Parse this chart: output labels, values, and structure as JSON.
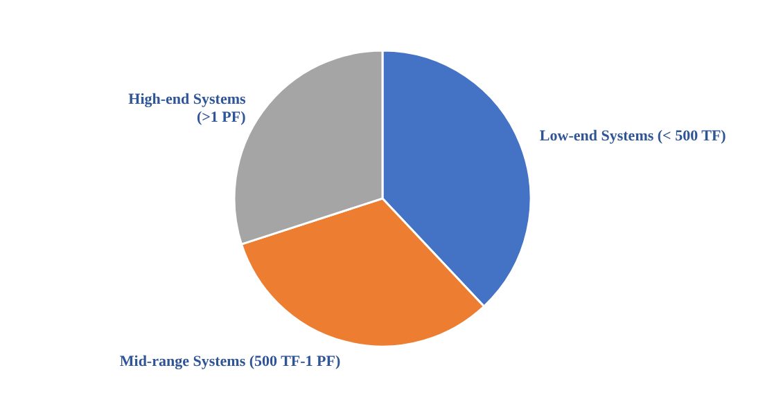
{
  "chart_data": {
    "type": "pie",
    "categories": [
      "Low-end Systems (< 500 TF)",
      "Mid-range Systems (500 TF-1  PF)",
      "High-end Systems\n(>1 PF)"
    ],
    "values": [
      38,
      32,
      30
    ],
    "colors": [
      "#4472c4",
      "#ed7d31",
      "#a5a5a5"
    ],
    "legend": false
  }
}
